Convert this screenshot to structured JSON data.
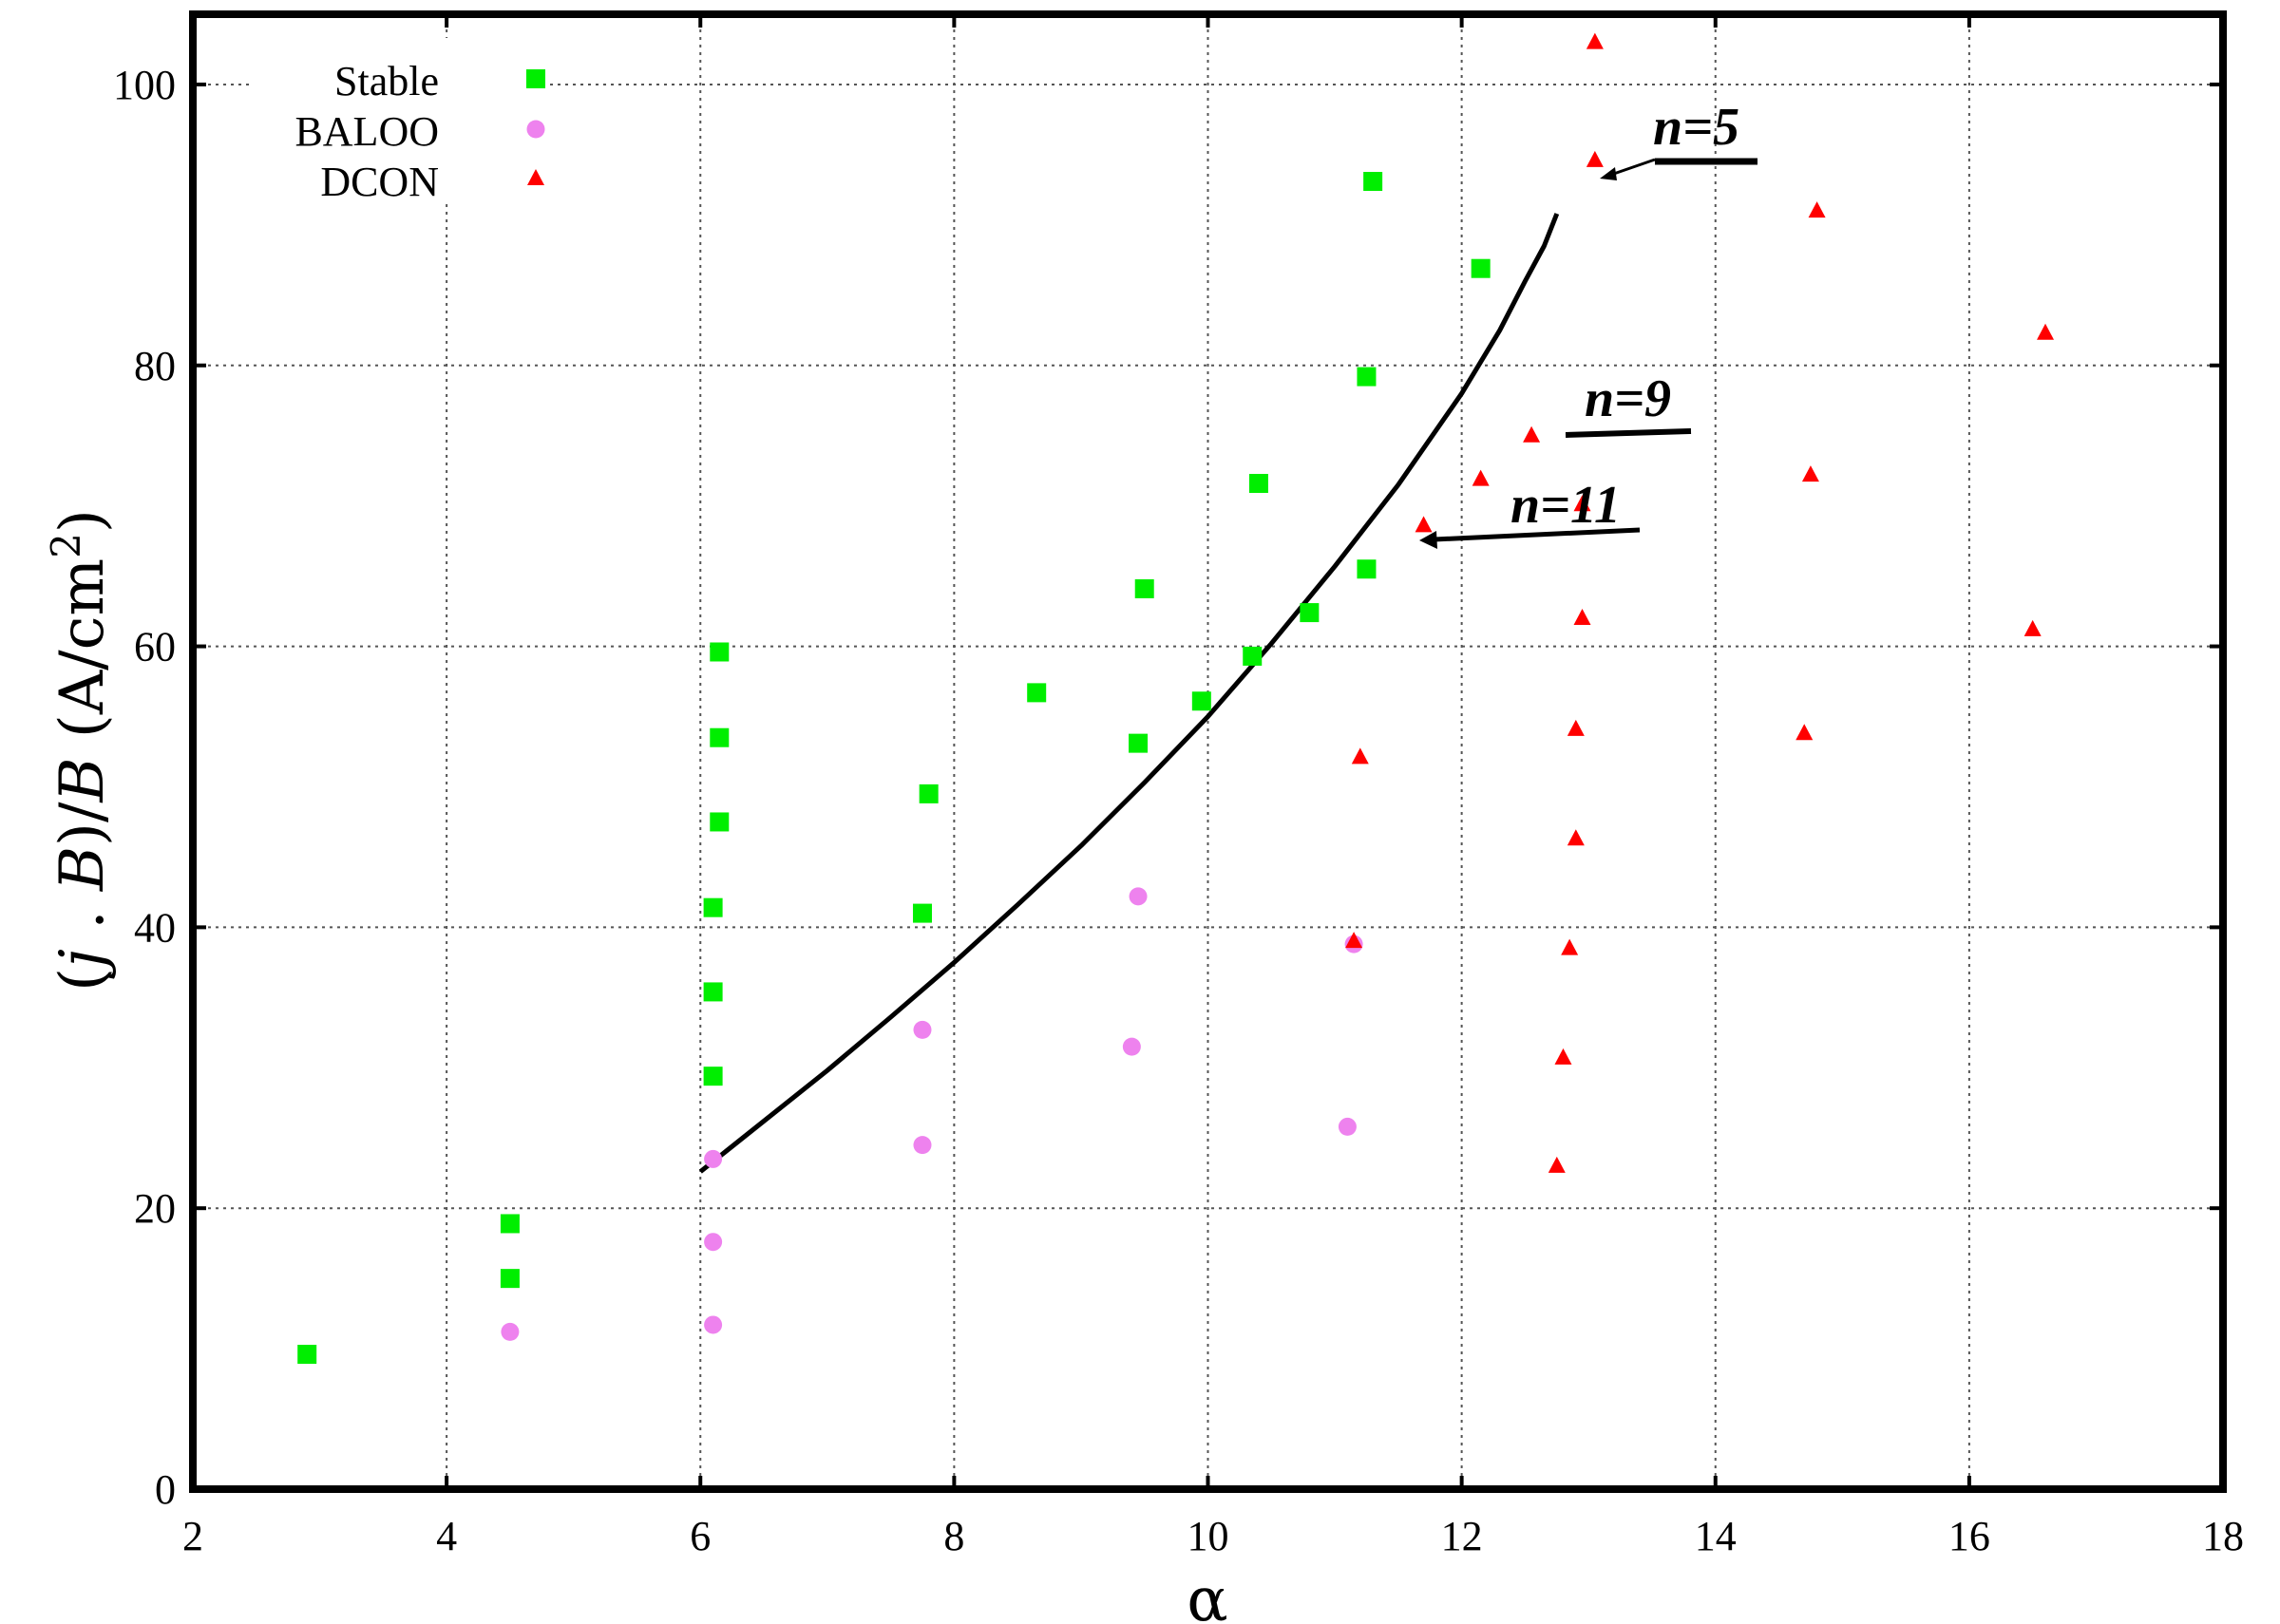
{
  "chart_data": {
    "type": "scatter",
    "xlabel": "α",
    "ylabel_parts": [
      "(",
      "j",
      " . ",
      "B",
      ")/",
      "B",
      " (A/cm",
      "2",
      ")"
    ],
    "xlim": [
      2,
      18
    ],
    "ylim": [
      0,
      105
    ],
    "xticks": [
      2,
      4,
      6,
      8,
      10,
      12,
      14,
      16,
      18
    ],
    "yticks": [
      0,
      20,
      40,
      60,
      80,
      100
    ],
    "grid": true,
    "legend_position": "top-left",
    "series": [
      {
        "name": "Stable",
        "marker": "square",
        "color": "#00ee00",
        "points": [
          [
            2.9,
            9.6
          ],
          [
            4.5,
            15.0
          ],
          [
            4.5,
            18.9
          ],
          [
            6.1,
            29.4
          ],
          [
            6.1,
            35.4
          ],
          [
            6.1,
            41.4
          ],
          [
            6.15,
            47.5
          ],
          [
            6.15,
            53.5
          ],
          [
            6.15,
            59.6
          ],
          [
            7.75,
            41.0
          ],
          [
            7.8,
            49.5
          ],
          [
            8.65,
            56.7
          ],
          [
            9.45,
            53.1
          ],
          [
            9.5,
            64.1
          ],
          [
            9.95,
            56.1
          ],
          [
            10.35,
            59.3
          ],
          [
            10.4,
            71.6
          ],
          [
            10.8,
            62.4
          ],
          [
            11.25,
            65.5
          ],
          [
            11.25,
            79.2
          ],
          [
            11.3,
            93.1
          ],
          [
            12.15,
            86.9
          ]
        ]
      },
      {
        "name": "BALOO",
        "marker": "circle",
        "color": "#ee82ee",
        "points": [
          [
            4.5,
            11.2
          ],
          [
            6.1,
            11.7
          ],
          [
            6.1,
            17.6
          ],
          [
            6.1,
            23.5
          ],
          [
            7.75,
            24.5
          ],
          [
            7.75,
            32.7
          ],
          [
            9.4,
            31.5
          ],
          [
            9.45,
            42.2
          ],
          [
            11.1,
            25.8
          ],
          [
            11.15,
            38.8
          ]
        ]
      },
      {
        "name": "DCON",
        "marker": "triangle",
        "color": "#ff0000",
        "points": [
          [
            11.15,
            39.0
          ],
          [
            11.2,
            52.1
          ],
          [
            11.7,
            68.6
          ],
          [
            12.15,
            71.9
          ],
          [
            12.55,
            75.0
          ],
          [
            12.75,
            23.0
          ],
          [
            12.8,
            30.7
          ],
          [
            12.85,
            38.5
          ],
          [
            12.9,
            46.3
          ],
          [
            12.9,
            54.1
          ],
          [
            12.95,
            62.0
          ],
          [
            12.95,
            70.1
          ],
          [
            13.05,
            94.6
          ],
          [
            13.05,
            103.0
          ],
          [
            14.7,
            53.8
          ],
          [
            14.75,
            72.2
          ],
          [
            14.8,
            91.0
          ],
          [
            16.5,
            61.2
          ],
          [
            16.6,
            82.3
          ]
        ]
      }
    ],
    "curve": {
      "x": [
        6.0,
        6.5,
        7.0,
        7.5,
        8.0,
        8.5,
        9.0,
        9.5,
        10.0,
        10.5,
        11.0,
        11.5,
        12.0,
        12.3,
        12.5,
        12.65,
        12.75
      ],
      "y": [
        22.6,
        26.2,
        29.8,
        33.6,
        37.5,
        41.6,
        45.8,
        50.3,
        55.0,
        60.2,
        65.7,
        71.5,
        78.0,
        82.5,
        86.0,
        88.5,
        90.8
      ]
    },
    "annotations": [
      {
        "text": "n=5",
        "x": 14.1,
        "y": 97.8
      },
      {
        "text": "n=9",
        "x": 13.55,
        "y": 78.2
      },
      {
        "text": "n=11",
        "x": 13.2,
        "y": 70.5
      }
    ]
  }
}
